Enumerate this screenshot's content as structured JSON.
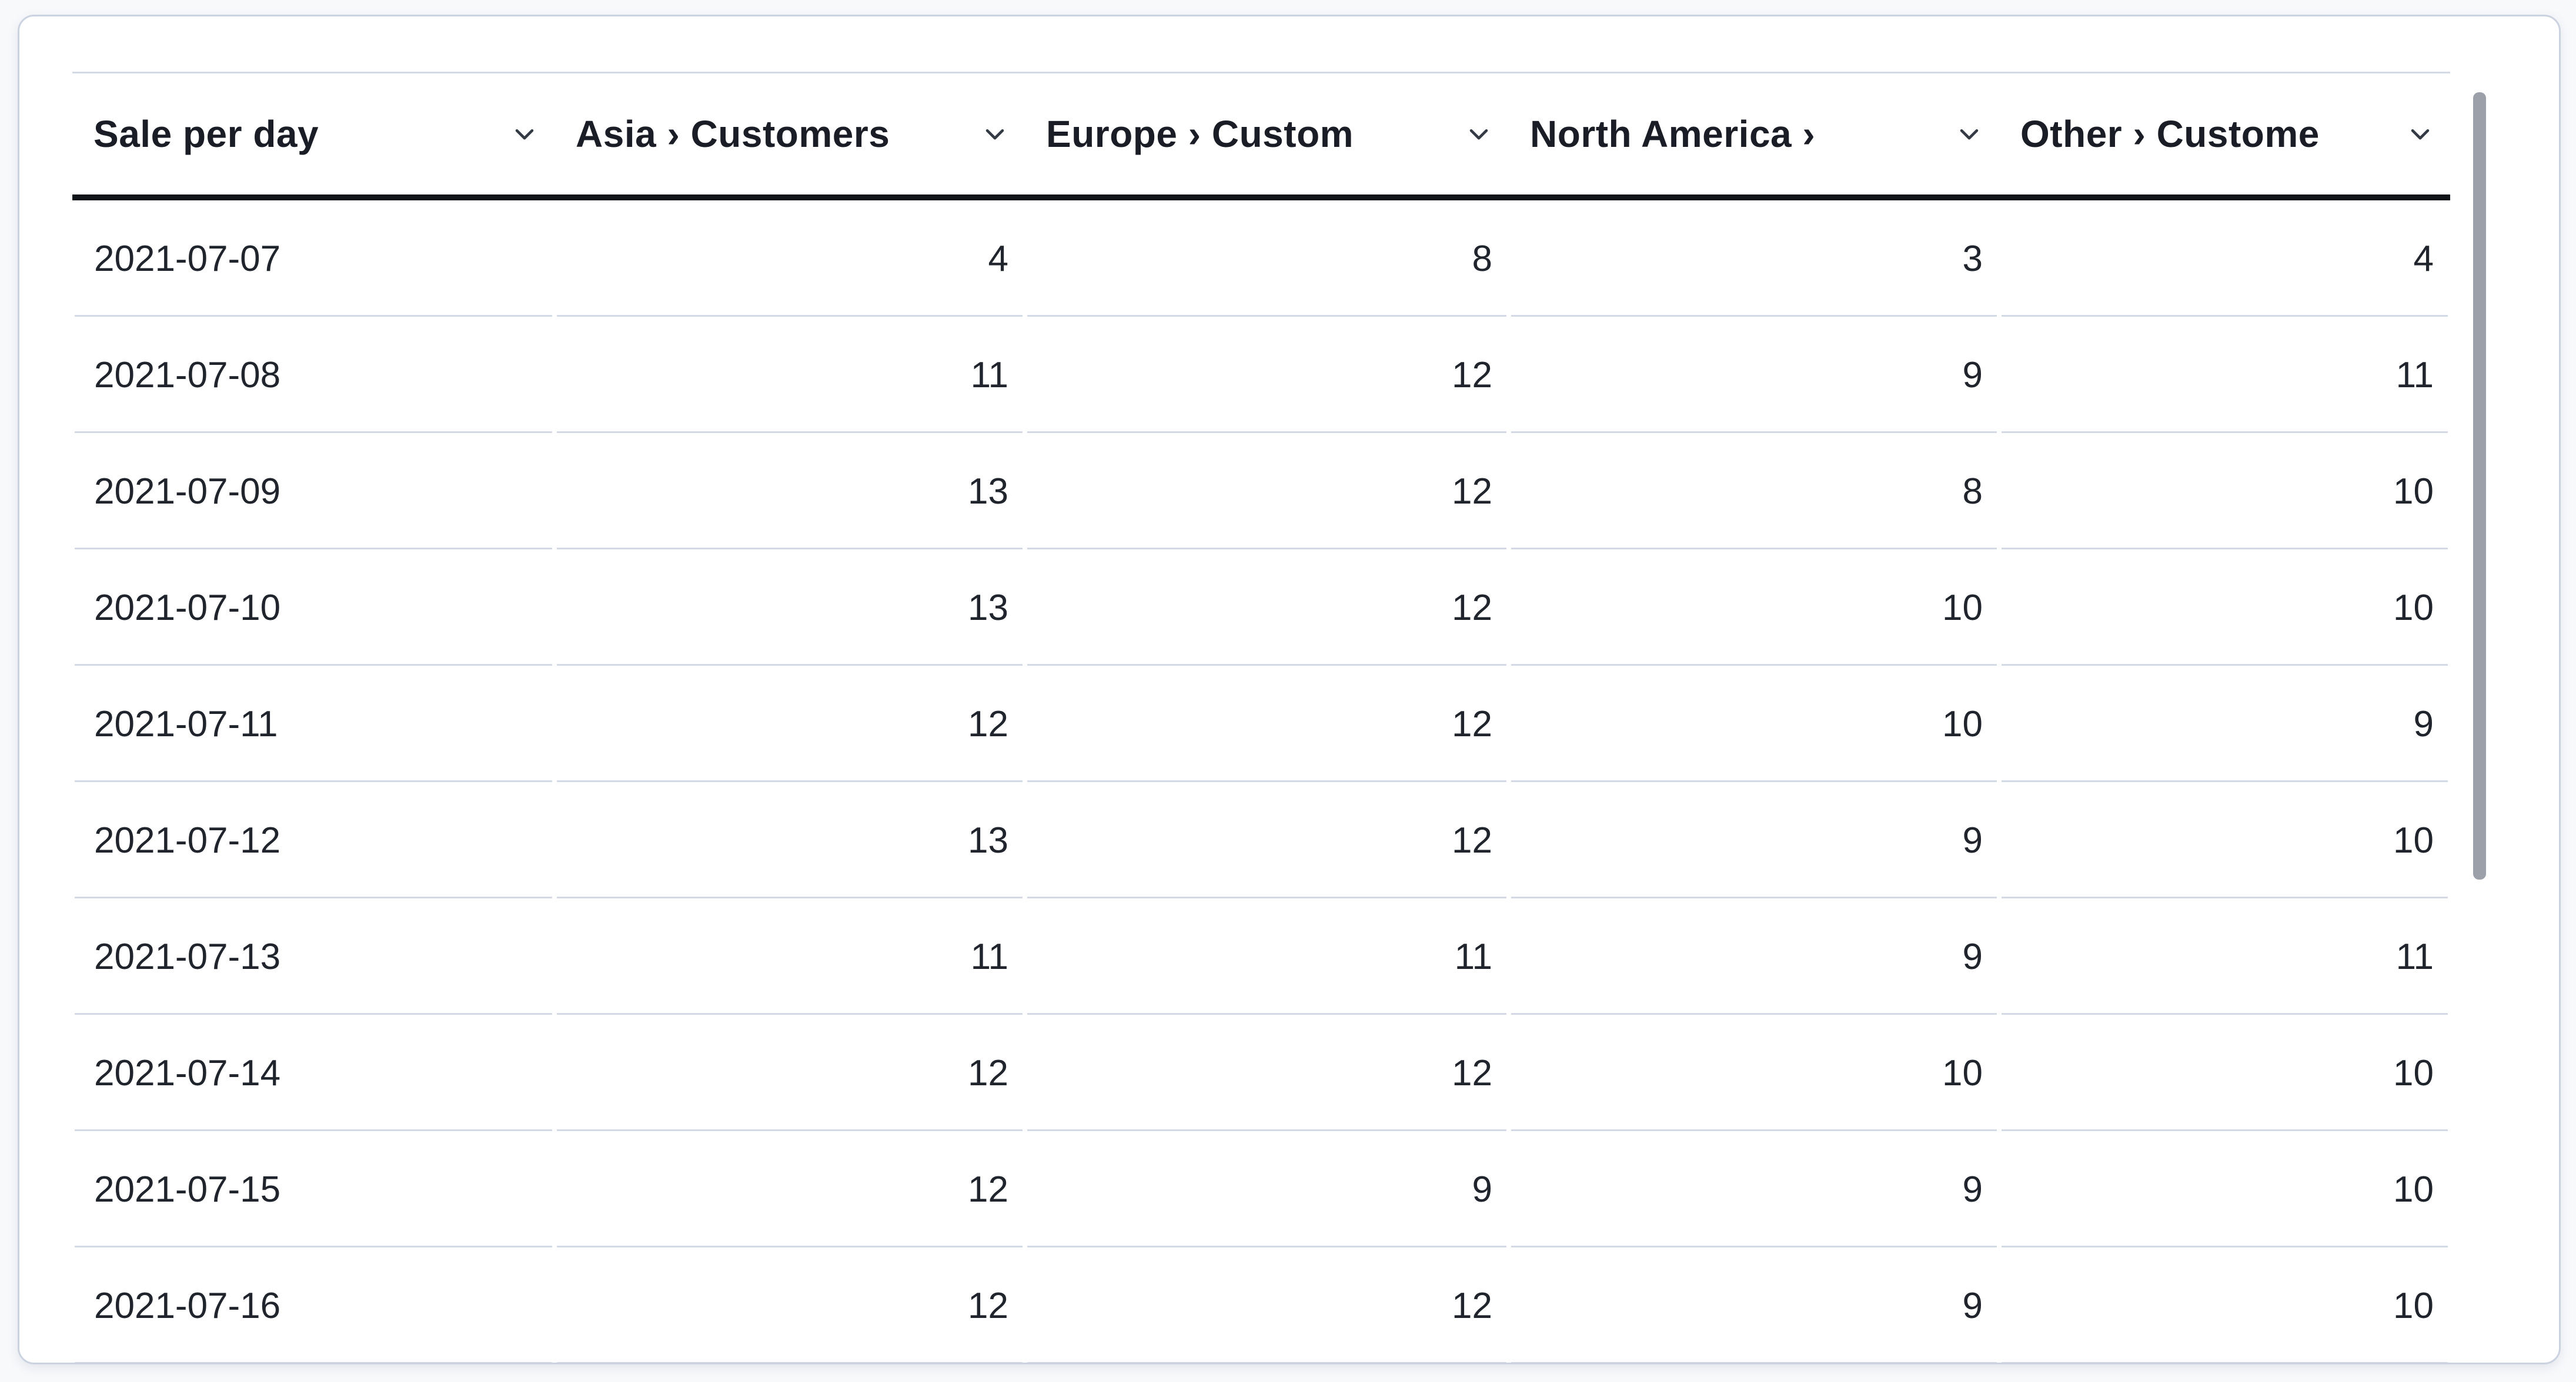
{
  "table": {
    "columns": [
      {
        "id": "sale-per-day",
        "label": "Sale per day"
      },
      {
        "id": "asia-customers",
        "label": "Asia › Customers"
      },
      {
        "id": "europe-customers",
        "label": "Europe › Custom"
      },
      {
        "id": "north-america-customers",
        "label": "North America › "
      },
      {
        "id": "other-customers",
        "label": "Other › Custome"
      }
    ],
    "rows": [
      {
        "date": "2021-07-07",
        "values": [
          4,
          8,
          3,
          4
        ]
      },
      {
        "date": "2021-07-08",
        "values": [
          11,
          12,
          9,
          11
        ]
      },
      {
        "date": "2021-07-09",
        "values": [
          13,
          12,
          8,
          10
        ]
      },
      {
        "date": "2021-07-10",
        "values": [
          13,
          12,
          10,
          10
        ]
      },
      {
        "date": "2021-07-11",
        "values": [
          12,
          12,
          10,
          9
        ]
      },
      {
        "date": "2021-07-12",
        "values": [
          13,
          12,
          9,
          10
        ]
      },
      {
        "date": "2021-07-13",
        "values": [
          11,
          11,
          9,
          11
        ]
      },
      {
        "date": "2021-07-14",
        "values": [
          12,
          12,
          10,
          10
        ]
      },
      {
        "date": "2021-07-15",
        "values": [
          12,
          9,
          9,
          10
        ]
      },
      {
        "date": "2021-07-16",
        "values": [
          12,
          12,
          9,
          10
        ]
      }
    ]
  },
  "icons": {
    "column_action": "chevron-down"
  },
  "colors": {
    "row_divider": "#d3dae6",
    "header_underline": "#111419",
    "card_border": "#ccd3e0",
    "text": "#20242c",
    "scrollbar_thumb": "#9ba0a9"
  }
}
